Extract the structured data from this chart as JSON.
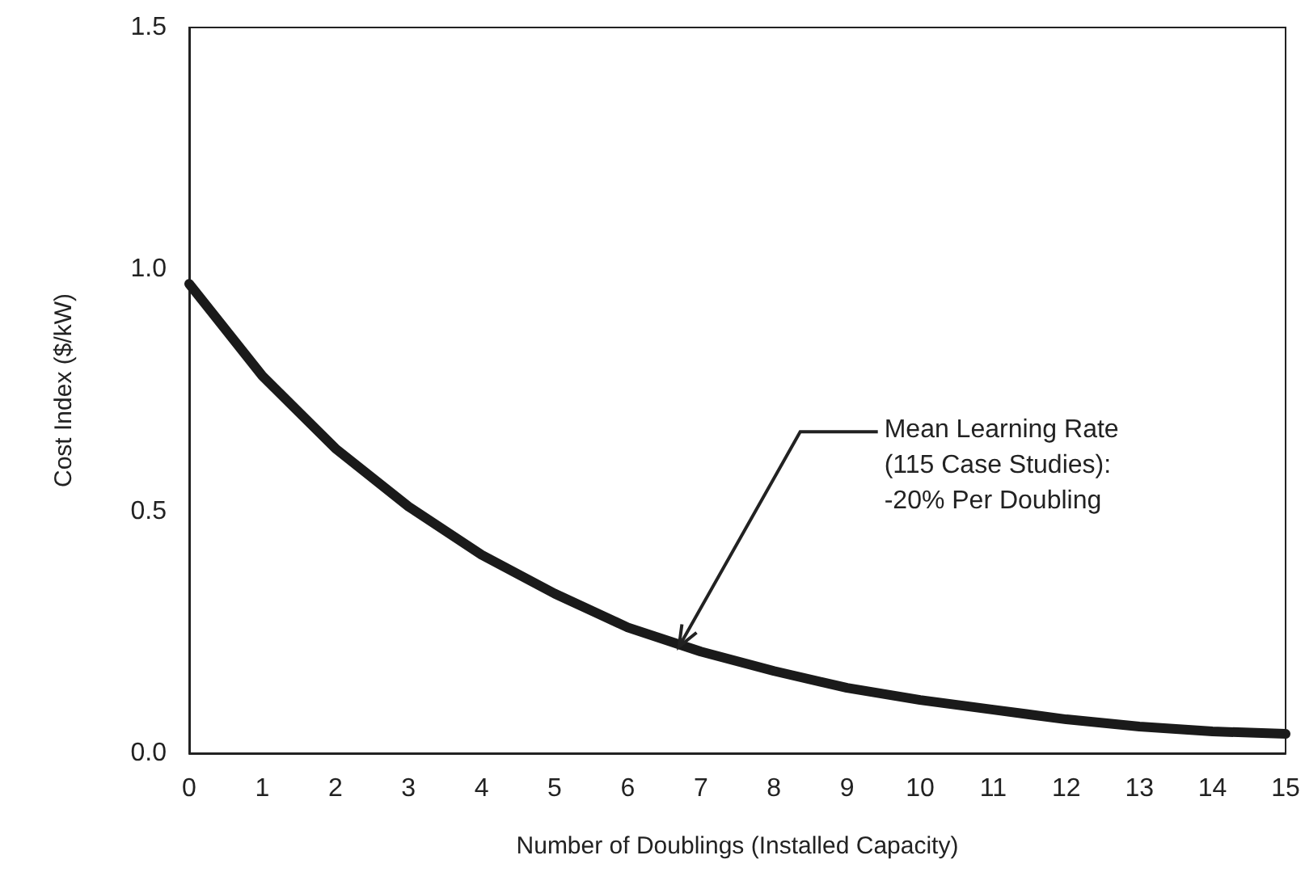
{
  "chart_data": {
    "type": "line",
    "xlabel": "Number of Doublings (Installed Capacity)",
    "ylabel": "Cost Index ($/kW)",
    "x": [
      0,
      1,
      2,
      3,
      4,
      5,
      6,
      7,
      8,
      9,
      10,
      11,
      12,
      13,
      14,
      15
    ],
    "series": [
      {
        "color": "#1a1a1a",
        "values": [
          0.97,
          0.78,
          0.63,
          0.51,
          0.41,
          0.33,
          0.26,
          0.21,
          0.17,
          0.135,
          0.11,
          0.09,
          0.07,
          0.055,
          0.045,
          0.04
        ]
      }
    ],
    "xlim": [
      0,
      15
    ],
    "xticks": [
      0,
      1,
      2,
      3,
      4,
      5,
      6,
      7,
      8,
      9,
      10,
      11,
      12,
      13,
      14,
      15
    ],
    "ylim": [
      0,
      1.5
    ],
    "yticks": [
      {
        "value": 0,
        "label": "0.0"
      },
      {
        "value": 0.5,
        "label": "0.5"
      },
      {
        "value": 1,
        "label": "1.0"
      },
      {
        "value": 1.5,
        "label": "1.5"
      }
    ],
    "annotations": [
      {
        "text": "Mean Learning Rate\n(115 Case Studies):\n-20% Per Doubling",
        "x": 6.7,
        "y": 0.22
      }
    ],
    "grid": false,
    "marker": "none",
    "line_style": "solid"
  }
}
